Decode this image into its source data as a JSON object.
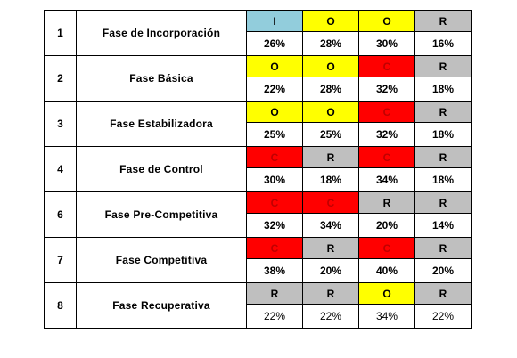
{
  "colors": {
    "I": "#92cddc",
    "O": "#ffff00",
    "C": "#ff0000",
    "R": "#bfbfbf"
  },
  "rows": [
    {
      "number": "1",
      "name": "Fase de Incorporación",
      "codes": [
        "I",
        "O",
        "O",
        "R"
      ],
      "percents": [
        "26%",
        "28%",
        "30%",
        "16%"
      ],
      "bold_percents": true
    },
    {
      "number": "2",
      "name": "Fase Básica",
      "codes": [
        "O",
        "O",
        "C",
        "R"
      ],
      "percents": [
        "22%",
        "28%",
        "32%",
        "18%"
      ],
      "bold_percents": true
    },
    {
      "number": "3",
      "name": "Fase Estabilizadora",
      "codes": [
        "O",
        "O",
        "C",
        "R"
      ],
      "percents": [
        "25%",
        "25%",
        "32%",
        "18%"
      ],
      "bold_percents": true
    },
    {
      "number": "4",
      "name": "Fase de Control",
      "codes": [
        "C",
        "R",
        "C",
        "R"
      ],
      "percents": [
        "30%",
        "18%",
        "34%",
        "18%"
      ],
      "bold_percents": true
    },
    {
      "number": "6",
      "name": "Fase Pre-Competitiva",
      "codes": [
        "C",
        "C",
        "R",
        "R"
      ],
      "percents": [
        "32%",
        "34%",
        "20%",
        "14%"
      ],
      "bold_percents": true
    },
    {
      "number": "7",
      "name": "Fase Competitiva",
      "codes": [
        "C",
        "R",
        "C",
        "R"
      ],
      "percents": [
        "38%",
        "20%",
        "40%",
        "20%"
      ],
      "bold_percents": true
    },
    {
      "number": "8",
      "name": "Fase Recuperativa",
      "codes": [
        "R",
        "R",
        "O",
        "R"
      ],
      "percents": [
        "22%",
        "22%",
        "34%",
        "22%"
      ],
      "bold_percents": false
    }
  ]
}
